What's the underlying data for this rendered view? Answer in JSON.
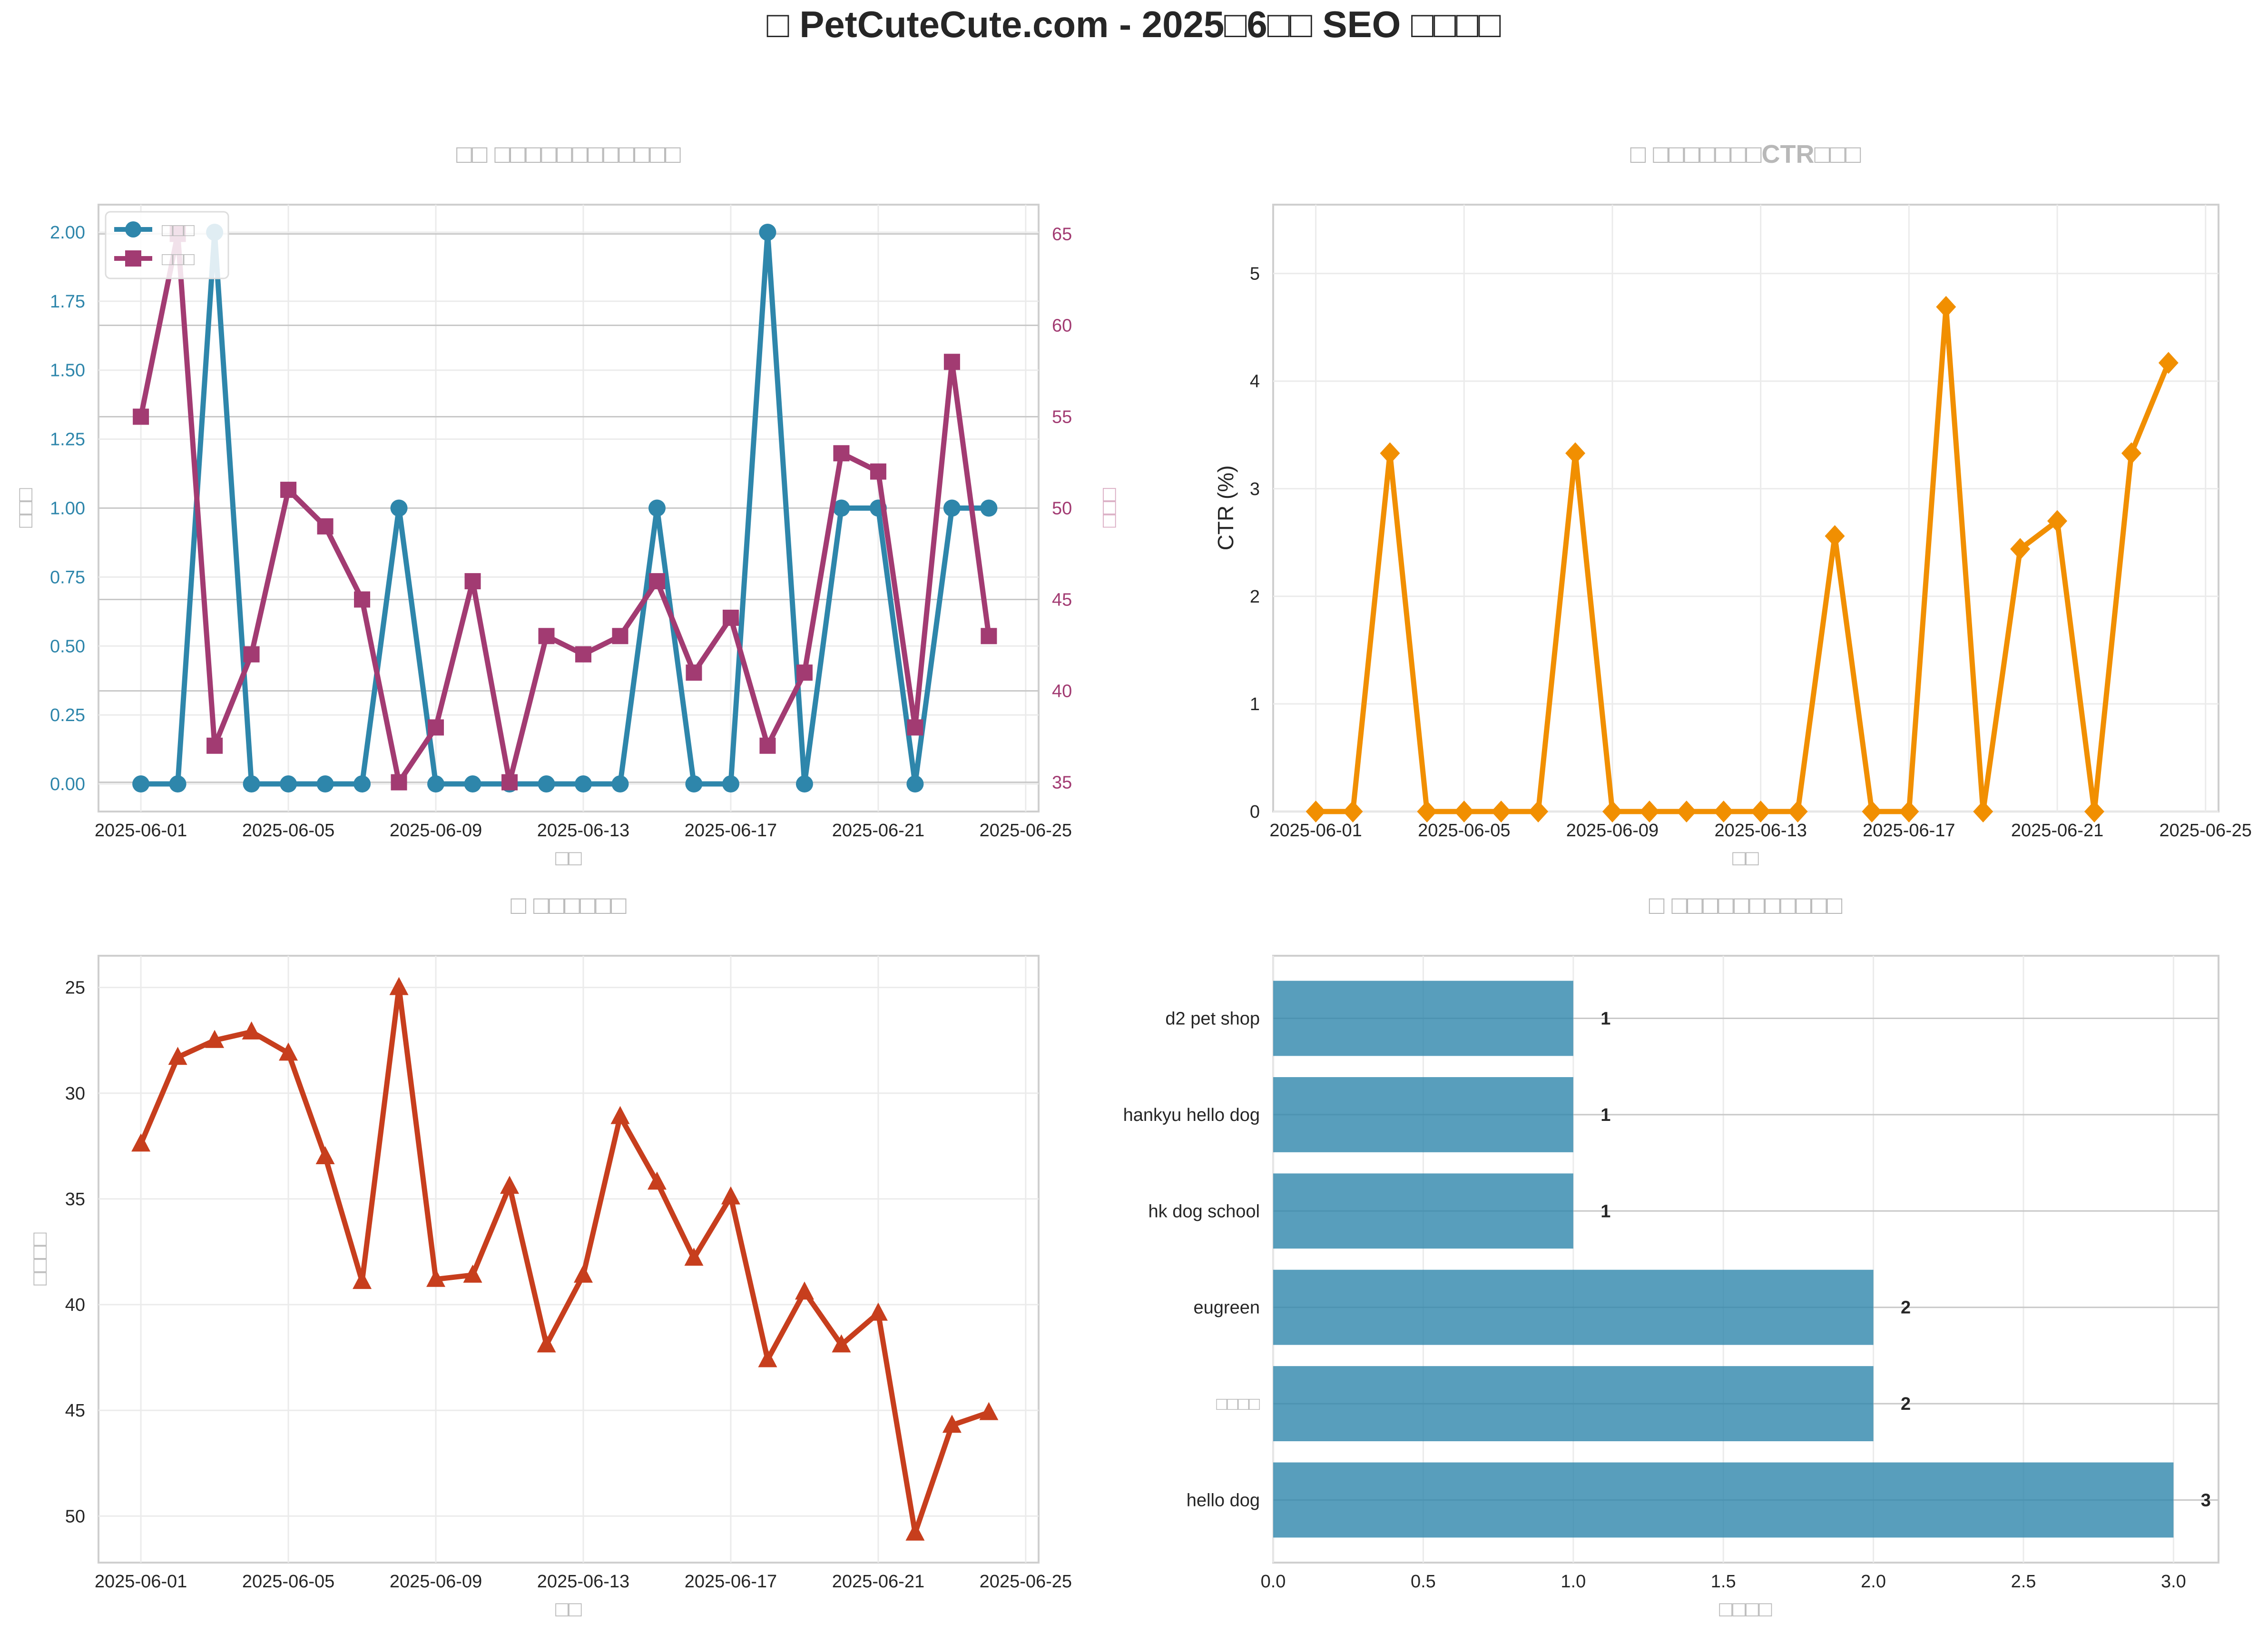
{
  "suptitle": "□ PetCuteCute.com - 2025□6□□ SEO □□□□",
  "colors": {
    "clicks": "#2e86ab",
    "impressions": "#a23b72",
    "ctr": "#f18f01",
    "position": "#c73e1d",
    "keywords": "#2e86ab"
  },
  "chart_data": [
    {
      "type": "line",
      "title": "□□ □□□□□□□□□□□□",
      "xlabel": "□□",
      "ylabel": "□□□",
      "y2label": "□□□",
      "x": [
        "2025-06-01",
        "2025-06-02",
        "2025-06-03",
        "2025-06-04",
        "2025-06-05",
        "2025-06-06",
        "2025-06-07",
        "2025-06-08",
        "2025-06-09",
        "2025-06-10",
        "2025-06-11",
        "2025-06-12",
        "2025-06-13",
        "2025-06-14",
        "2025-06-15",
        "2025-06-16",
        "2025-06-17",
        "2025-06-18",
        "2025-06-19",
        "2025-06-20",
        "2025-06-21",
        "2025-06-22",
        "2025-06-23",
        "2025-06-24"
      ],
      "xticks": [
        "2025-06-01",
        "2025-06-05",
        "2025-06-09",
        "2025-06-13",
        "2025-06-17",
        "2025-06-21",
        "2025-06-25"
      ],
      "series": [
        {
          "name": "□□□",
          "axis": "left",
          "marker": "circle",
          "values": [
            0,
            0,
            2,
            0,
            0,
            0,
            0,
            1,
            0,
            0,
            0,
            0,
            0,
            0,
            1,
            0,
            0,
            2,
            0,
            1,
            1,
            0,
            1,
            1
          ]
        },
        {
          "name": "□□□",
          "axis": "right",
          "marker": "square",
          "values": [
            55,
            65,
            37,
            42,
            51,
            49,
            45,
            35,
            38,
            46,
            35,
            43,
            42,
            43,
            46,
            41,
            44,
            37,
            41,
            53,
            52,
            38,
            58,
            43
          ]
        }
      ],
      "ylim": [
        -0.1,
        2.1
      ],
      "yticks": [
        "0.00",
        "0.25",
        "0.50",
        "0.75",
        "1.00",
        "1.25",
        "1.50",
        "1.75",
        "2.00"
      ],
      "y2lim": [
        33.4,
        66.6
      ],
      "y2ticks": [
        "35",
        "40",
        "45",
        "50",
        "55",
        "60",
        "65"
      ],
      "legend": "top-left",
      "grid": true
    },
    {
      "type": "line",
      "title": "□ □□□□□□□CTR□□□",
      "xlabel": "□□",
      "ylabel": "CTR (%)",
      "x": [
        "2025-06-01",
        "2025-06-02",
        "2025-06-03",
        "2025-06-04",
        "2025-06-05",
        "2025-06-06",
        "2025-06-07",
        "2025-06-08",
        "2025-06-09",
        "2025-06-10",
        "2025-06-11",
        "2025-06-12",
        "2025-06-13",
        "2025-06-14",
        "2025-06-15",
        "2025-06-16",
        "2025-06-17",
        "2025-06-18",
        "2025-06-19",
        "2025-06-20",
        "2025-06-21",
        "2025-06-22",
        "2025-06-23",
        "2025-06-24"
      ],
      "xticks": [
        "2025-06-01",
        "2025-06-05",
        "2025-06-09",
        "2025-06-13",
        "2025-06-17",
        "2025-06-21",
        "2025-06-25"
      ],
      "series": [
        {
          "marker": "diamond",
          "values": [
            0,
            0,
            3.33,
            0,
            0,
            0,
            0,
            3.33,
            0,
            0,
            0,
            0,
            0,
            0,
            2.56,
            0,
            0,
            4.69,
            0,
            2.44,
            2.7,
            0,
            3.33,
            4.17
          ]
        }
      ],
      "ylim": [
        0,
        5.64
      ],
      "yticks": [
        "0",
        "1",
        "2",
        "3",
        "4",
        "5"
      ],
      "grid": true
    },
    {
      "type": "line",
      "title": "□ □□□□□□",
      "xlabel": "□□",
      "ylabel": "□□□□",
      "x": [
        "2025-06-01",
        "2025-06-02",
        "2025-06-03",
        "2025-06-04",
        "2025-06-05",
        "2025-06-06",
        "2025-06-07",
        "2025-06-08",
        "2025-06-09",
        "2025-06-10",
        "2025-06-11",
        "2025-06-12",
        "2025-06-13",
        "2025-06-14",
        "2025-06-15",
        "2025-06-16",
        "2025-06-17",
        "2025-06-18",
        "2025-06-19",
        "2025-06-20",
        "2025-06-21",
        "2025-06-22",
        "2025-06-23",
        "2025-06-24"
      ],
      "xticks": [
        "2025-06-01",
        "2025-06-05",
        "2025-06-09",
        "2025-06-13",
        "2025-06-17",
        "2025-06-21",
        "2025-06-25"
      ],
      "series": [
        {
          "marker": "triangle",
          "values": [
            32.4,
            28.3,
            27.5,
            27.1,
            28.1,
            33.0,
            38.9,
            25.0,
            38.8,
            38.6,
            34.4,
            41.9,
            38.6,
            31.1,
            34.2,
            37.8,
            34.9,
            42.6,
            39.4,
            41.9,
            40.4,
            50.8,
            45.7,
            45.1
          ]
        }
      ],
      "ylim": [
        52.2,
        23.5
      ],
      "yticks": [
        "25",
        "30",
        "35",
        "40",
        "45",
        "50"
      ],
      "inverted": true,
      "grid": true
    },
    {
      "type": "bar",
      "orientation": "horizontal",
      "title": "□ □□□□□□□□□□□",
      "xlabel": "□□□□",
      "categories": [
        "d2 pet shop",
        "hankyu hello dog",
        "hk dog school",
        "eugreen",
        "□□□□",
        "hello dog"
      ],
      "values": [
        1,
        1,
        1,
        2,
        2,
        3
      ],
      "value_labels": [
        "1",
        "1",
        "1",
        "2",
        "2",
        "3"
      ],
      "xlim": [
        0,
        3.15
      ],
      "xticks": [
        "0.0",
        "0.5",
        "1.0",
        "1.5",
        "2.0",
        "2.5",
        "3.0"
      ],
      "grid": true
    }
  ]
}
